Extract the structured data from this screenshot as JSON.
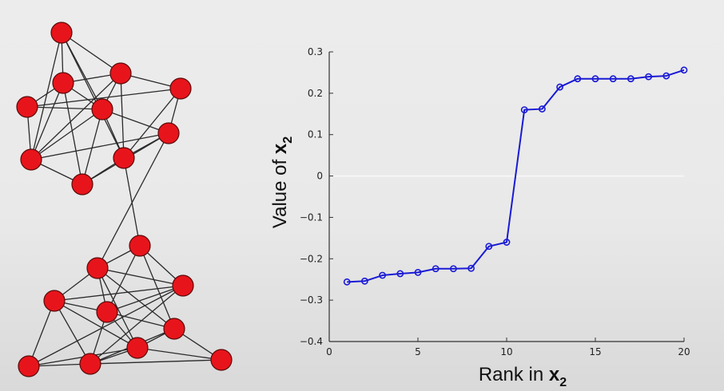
{
  "chart_data": [
    {
      "type": "diagram",
      "description_elements": "graph",
      "node_color": "#e8141b",
      "edge_color": "#2a2a2a",
      "nodes": [
        {
          "id": 1
        },
        {
          "id": 2
        },
        {
          "id": 3
        },
        {
          "id": 4
        },
        {
          "id": 5
        },
        {
          "id": 6
        },
        {
          "id": 7
        },
        {
          "id": 8
        },
        {
          "id": 9
        },
        {
          "id": 10
        },
        {
          "id": 11
        },
        {
          "id": 12
        },
        {
          "id": 13
        },
        {
          "id": 14
        },
        {
          "id": 15
        },
        {
          "id": 16
        },
        {
          "id": 17
        },
        {
          "id": 18
        },
        {
          "id": 19
        },
        {
          "id": 20
        }
      ],
      "edges": [
        [
          1,
          2
        ],
        [
          1,
          3
        ],
        [
          1,
          5
        ],
        [
          1,
          7
        ],
        [
          1,
          9
        ],
        [
          2,
          3
        ],
        [
          2,
          4
        ],
        [
          2,
          5
        ],
        [
          2,
          7
        ],
        [
          2,
          8
        ],
        [
          3,
          5
        ],
        [
          3,
          6
        ],
        [
          3,
          7
        ],
        [
          3,
          9
        ],
        [
          4,
          5
        ],
        [
          4,
          6
        ],
        [
          4,
          7
        ],
        [
          5,
          7
        ],
        [
          5,
          8
        ],
        [
          5,
          9
        ],
        [
          5,
          10
        ],
        [
          6,
          9
        ],
        [
          6,
          10
        ],
        [
          7,
          8
        ],
        [
          7,
          10
        ],
        [
          8,
          9
        ],
        [
          8,
          10
        ],
        [
          9,
          10
        ],
        [
          10,
          12
        ],
        [
          9,
          11
        ],
        [
          11,
          12
        ],
        [
          11,
          13
        ],
        [
          11,
          15
        ],
        [
          11,
          16
        ],
        [
          12,
          13
        ],
        [
          12,
          14
        ],
        [
          12,
          15
        ],
        [
          12,
          16
        ],
        [
          12,
          19
        ],
        [
          13,
          14
        ],
        [
          13,
          15
        ],
        [
          13,
          17
        ],
        [
          13,
          18
        ],
        [
          14,
          15
        ],
        [
          14,
          17
        ],
        [
          14,
          18
        ],
        [
          14,
          19
        ],
        [
          15,
          16
        ],
        [
          15,
          18
        ],
        [
          15,
          19
        ],
        [
          16,
          18
        ],
        [
          16,
          19
        ],
        [
          16,
          20
        ],
        [
          17,
          18
        ],
        [
          17,
          19
        ],
        [
          18,
          19
        ],
        [
          18,
          20
        ],
        [
          19,
          20
        ]
      ]
    },
    {
      "type": "line",
      "series_color": "#1a1ad6",
      "xlabel_text": "Rank in ",
      "xlabel_var": "x",
      "xlabel_sub": "2",
      "ylabel_text": "Value of ",
      "ylabel_var": "x",
      "ylabel_sub": "2",
      "xlim": [
        0,
        20
      ],
      "ylim": [
        -0.4,
        0.3
      ],
      "xticks": [
        0,
        5,
        10,
        15,
        20
      ],
      "xtick_labels": [
        "0",
        "5",
        "10",
        "15",
        "20"
      ],
      "yticks": [
        -0.4,
        -0.3,
        -0.2,
        -0.1,
        0,
        0.1,
        0.2,
        0.3
      ],
      "ytick_labels": [
        "−0.4",
        "−0.3",
        "−0.2",
        "−0.1",
        "0",
        "0.1",
        "0.2",
        "0.3"
      ],
      "grid": false,
      "x": [
        1,
        2,
        3,
        4,
        5,
        6,
        7,
        8,
        9,
        10,
        11,
        12,
        13,
        14,
        15,
        16,
        17,
        18,
        19,
        20
      ],
      "values": [
        -0.256,
        -0.254,
        -0.24,
        -0.236,
        -0.233,
        -0.224,
        -0.224,
        -0.223,
        -0.17,
        -0.16,
        0.16,
        0.162,
        0.215,
        0.235,
        0.235,
        0.235,
        0.235,
        0.24,
        0.242,
        0.256
      ]
    }
  ]
}
